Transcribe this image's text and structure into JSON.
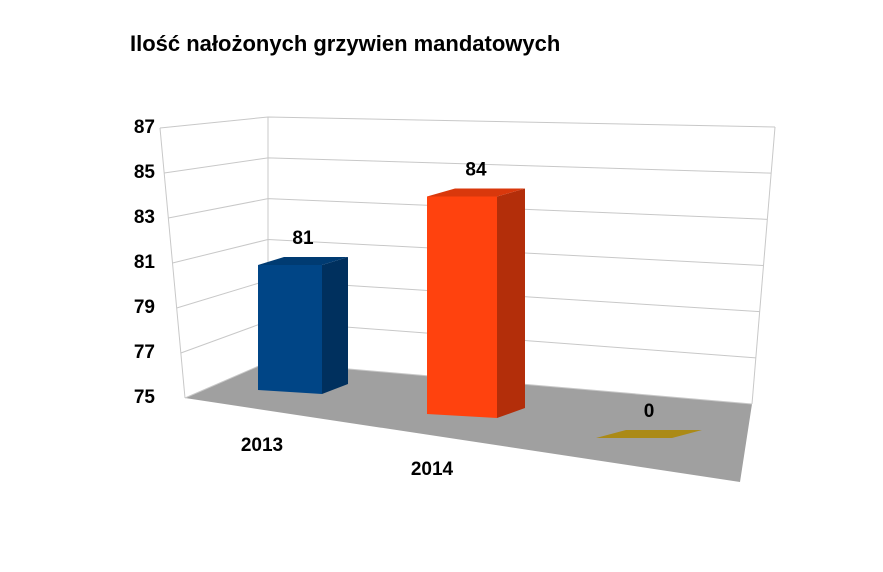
{
  "chart_data": {
    "type": "bar3d",
    "title": "Ilość nałożonych grzywien mandatowych",
    "categories": [
      "2013",
      "2014",
      null
    ],
    "values": [
      81,
      84,
      0
    ],
    "colors": [
      "#004586",
      "#ff420e",
      "#c9a21b"
    ],
    "ylim": [
      75,
      87
    ],
    "yticks": [
      75,
      77,
      79,
      81,
      83,
      85,
      87
    ],
    "grid": true
  }
}
